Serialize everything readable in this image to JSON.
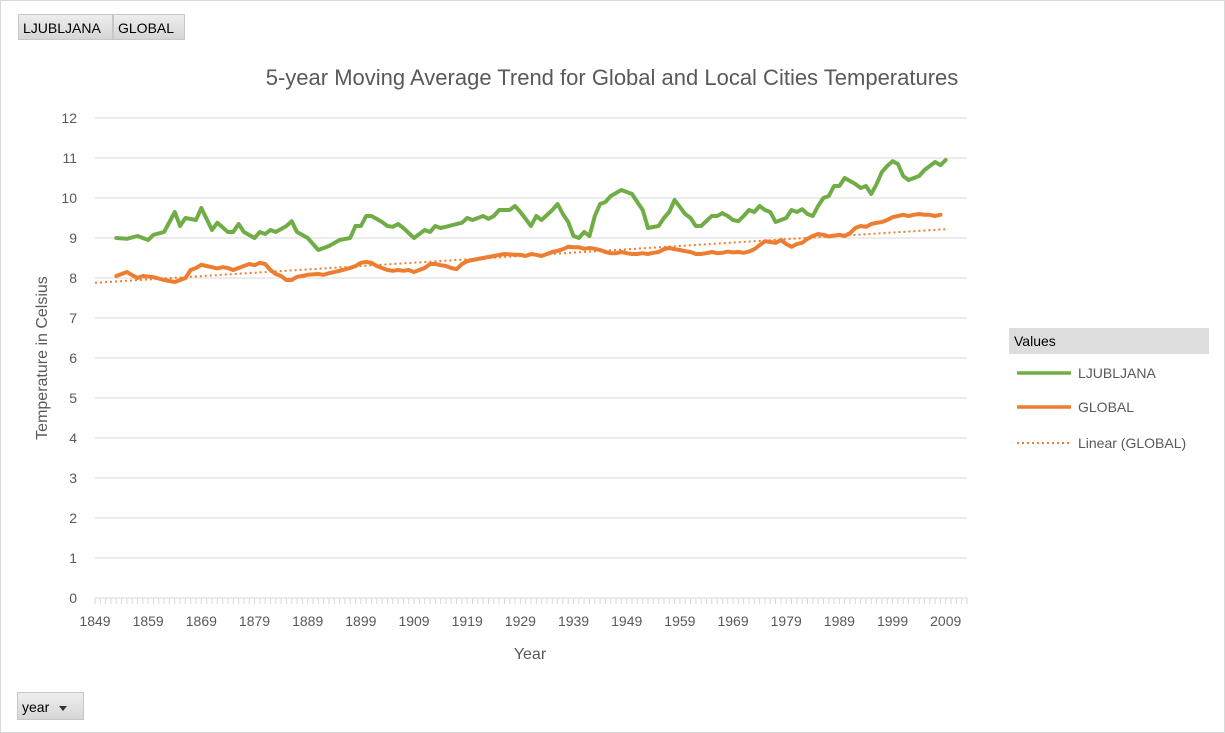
{
  "filters": {
    "series_buttons": [
      "LJUBLJANA",
      "GLOBAL"
    ],
    "axis_field_button": "year"
  },
  "legend": {
    "header": "Values",
    "entries": [
      "LJUBLJANA",
      "GLOBAL",
      "Linear (GLOBAL)"
    ]
  },
  "colors": {
    "ljubljana": "#70ad47",
    "global": "#ed7d31",
    "trend": "#ed7d31",
    "grid": "#d9d9d9"
  },
  "chart_data": {
    "type": "line",
    "title": "5-year Moving Average Trend for Global and Local Cities Temperatures",
    "xlabel": "Year",
    "ylabel": "Temperature in Celsius",
    "x_tick_labels": [
      "1849",
      "1859",
      "1869",
      "1879",
      "1889",
      "1899",
      "1909",
      "1919",
      "1929",
      "1939",
      "1949",
      "1959",
      "1969",
      "1979",
      "1989",
      "1999",
      "2009"
    ],
    "y_tick_labels": [
      "0",
      "1",
      "2",
      "3",
      "4",
      "5",
      "6",
      "7",
      "8",
      "9",
      "10",
      "11",
      "12"
    ],
    "xlim": [
      1849,
      2013
    ],
    "ylim": [
      0,
      12
    ],
    "grid": "horizontal",
    "legend_position": "right",
    "series": [
      {
        "name": "LJUBLJANA",
        "points": [
          [
            1853,
            9.0
          ],
          [
            1855,
            8.98
          ],
          [
            1857,
            9.05
          ],
          [
            1859,
            8.95
          ],
          [
            1860,
            9.08
          ],
          [
            1862,
            9.15
          ],
          [
            1864,
            9.65
          ],
          [
            1865,
            9.3
          ],
          [
            1866,
            9.5
          ],
          [
            1868,
            9.45
          ],
          [
            1869,
            9.75
          ],
          [
            1871,
            9.2
          ],
          [
            1872,
            9.38
          ],
          [
            1874,
            9.15
          ],
          [
            1875,
            9.15
          ],
          [
            1876,
            9.35
          ],
          [
            1877,
            9.15
          ],
          [
            1879,
            9.0
          ],
          [
            1880,
            9.15
          ],
          [
            1881,
            9.1
          ],
          [
            1882,
            9.2
          ],
          [
            1883,
            9.15
          ],
          [
            1885,
            9.3
          ],
          [
            1886,
            9.42
          ],
          [
            1887,
            9.15
          ],
          [
            1889,
            9.0
          ],
          [
            1891,
            8.7
          ],
          [
            1893,
            8.8
          ],
          [
            1895,
            8.95
          ],
          [
            1897,
            9.0
          ],
          [
            1898,
            9.3
          ],
          [
            1899,
            9.3
          ],
          [
            1900,
            9.55
          ],
          [
            1901,
            9.55
          ],
          [
            1903,
            9.4
          ],
          [
            1904,
            9.3
          ],
          [
            1905,
            9.28
          ],
          [
            1906,
            9.35
          ],
          [
            1907,
            9.25
          ],
          [
            1909,
            9.0
          ],
          [
            1911,
            9.2
          ],
          [
            1912,
            9.15
          ],
          [
            1913,
            9.3
          ],
          [
            1914,
            9.25
          ],
          [
            1915,
            9.28
          ],
          [
            1917,
            9.35
          ],
          [
            1918,
            9.38
          ],
          [
            1919,
            9.5
          ],
          [
            1920,
            9.45
          ],
          [
            1922,
            9.55
          ],
          [
            1923,
            9.48
          ],
          [
            1924,
            9.55
          ],
          [
            1925,
            9.7
          ],
          [
            1927,
            9.7
          ],
          [
            1928,
            9.8
          ],
          [
            1929,
            9.65
          ],
          [
            1931,
            9.3
          ],
          [
            1932,
            9.55
          ],
          [
            1933,
            9.45
          ],
          [
            1935,
            9.7
          ],
          [
            1936,
            9.85
          ],
          [
            1937,
            9.6
          ],
          [
            1938,
            9.4
          ],
          [
            1939,
            9.05
          ],
          [
            1940,
            9.0
          ],
          [
            1941,
            9.15
          ],
          [
            1942,
            9.05
          ],
          [
            1943,
            9.55
          ],
          [
            1944,
            9.85
          ],
          [
            1945,
            9.9
          ],
          [
            1946,
            10.05
          ],
          [
            1948,
            10.2
          ],
          [
            1950,
            10.1
          ],
          [
            1951,
            9.9
          ],
          [
            1952,
            9.7
          ],
          [
            1953,
            9.25
          ],
          [
            1955,
            9.3
          ],
          [
            1956,
            9.5
          ],
          [
            1957,
            9.65
          ],
          [
            1958,
            9.95
          ],
          [
            1960,
            9.6
          ],
          [
            1961,
            9.5
          ],
          [
            1962,
            9.3
          ],
          [
            1963,
            9.3
          ],
          [
            1965,
            9.55
          ],
          [
            1966,
            9.55
          ],
          [
            1967,
            9.62
          ],
          [
            1968,
            9.55
          ],
          [
            1969,
            9.45
          ],
          [
            1970,
            9.42
          ],
          [
            1971,
            9.55
          ],
          [
            1972,
            9.7
          ],
          [
            1973,
            9.65
          ],
          [
            1974,
            9.8
          ],
          [
            1975,
            9.7
          ],
          [
            1976,
            9.65
          ],
          [
            1977,
            9.4
          ],
          [
            1978,
            9.45
          ],
          [
            1979,
            9.5
          ],
          [
            1980,
            9.7
          ],
          [
            1981,
            9.65
          ],
          [
            1982,
            9.72
          ],
          [
            1983,
            9.6
          ],
          [
            1984,
            9.55
          ],
          [
            1985,
            9.8
          ],
          [
            1986,
            10.0
          ],
          [
            1987,
            10.05
          ],
          [
            1988,
            10.3
          ],
          [
            1989,
            10.3
          ],
          [
            1990,
            10.5
          ],
          [
            1992,
            10.35
          ],
          [
            1993,
            10.25
          ],
          [
            1994,
            10.3
          ],
          [
            1995,
            10.1
          ],
          [
            1996,
            10.35
          ],
          [
            1997,
            10.65
          ],
          [
            1998,
            10.8
          ],
          [
            1999,
            10.92
          ],
          [
            2000,
            10.85
          ],
          [
            2001,
            10.55
          ],
          [
            2002,
            10.45
          ],
          [
            2003,
            10.5
          ],
          [
            2004,
            10.55
          ],
          [
            2005,
            10.7
          ],
          [
            2006,
            10.8
          ],
          [
            2007,
            10.9
          ],
          [
            2008,
            10.82
          ],
          [
            2009,
            10.95
          ]
        ]
      },
      {
        "name": "GLOBAL",
        "points": [
          [
            1853,
            8.05
          ],
          [
            1855,
            8.15
          ],
          [
            1856,
            8.07
          ],
          [
            1857,
            8.0
          ],
          [
            1858,
            8.05
          ],
          [
            1860,
            8.02
          ],
          [
            1862,
            7.95
          ],
          [
            1864,
            7.9
          ],
          [
            1865,
            7.95
          ],
          [
            1866,
            8.0
          ],
          [
            1867,
            8.2
          ],
          [
            1868,
            8.25
          ],
          [
            1869,
            8.33
          ],
          [
            1870,
            8.3
          ],
          [
            1871,
            8.27
          ],
          [
            1872,
            8.24
          ],
          [
            1873,
            8.27
          ],
          [
            1874,
            8.25
          ],
          [
            1875,
            8.2
          ],
          [
            1876,
            8.25
          ],
          [
            1877,
            8.3
          ],
          [
            1878,
            8.35
          ],
          [
            1879,
            8.32
          ],
          [
            1880,
            8.38
          ],
          [
            1881,
            8.35
          ],
          [
            1882,
            8.2
          ],
          [
            1883,
            8.1
          ],
          [
            1884,
            8.05
          ],
          [
            1885,
            7.95
          ],
          [
            1886,
            7.95
          ],
          [
            1887,
            8.03
          ],
          [
            1888,
            8.05
          ],
          [
            1889,
            8.08
          ],
          [
            1891,
            8.1
          ],
          [
            1892,
            8.08
          ],
          [
            1893,
            8.12
          ],
          [
            1895,
            8.18
          ],
          [
            1897,
            8.25
          ],
          [
            1898,
            8.3
          ],
          [
            1899,
            8.38
          ],
          [
            1900,
            8.4
          ],
          [
            1901,
            8.38
          ],
          [
            1902,
            8.3
          ],
          [
            1903,
            8.25
          ],
          [
            1904,
            8.2
          ],
          [
            1905,
            8.18
          ],
          [
            1906,
            8.2
          ],
          [
            1907,
            8.18
          ],
          [
            1908,
            8.2
          ],
          [
            1909,
            8.15
          ],
          [
            1910,
            8.2
          ],
          [
            1911,
            8.25
          ],
          [
            1912,
            8.35
          ],
          [
            1913,
            8.35
          ],
          [
            1914,
            8.32
          ],
          [
            1915,
            8.3
          ],
          [
            1916,
            8.25
          ],
          [
            1917,
            8.22
          ],
          [
            1918,
            8.35
          ],
          [
            1919,
            8.42
          ],
          [
            1920,
            8.45
          ],
          [
            1922,
            8.5
          ],
          [
            1924,
            8.55
          ],
          [
            1926,
            8.6
          ],
          [
            1928,
            8.58
          ],
          [
            1929,
            8.58
          ],
          [
            1930,
            8.55
          ],
          [
            1931,
            8.6
          ],
          [
            1932,
            8.58
          ],
          [
            1933,
            8.55
          ],
          [
            1934,
            8.6
          ],
          [
            1935,
            8.65
          ],
          [
            1936,
            8.68
          ],
          [
            1937,
            8.72
          ],
          [
            1938,
            8.78
          ],
          [
            1939,
            8.77
          ],
          [
            1940,
            8.77
          ],
          [
            1941,
            8.73
          ],
          [
            1942,
            8.75
          ],
          [
            1943,
            8.73
          ],
          [
            1944,
            8.7
          ],
          [
            1945,
            8.65
          ],
          [
            1946,
            8.62
          ],
          [
            1947,
            8.62
          ],
          [
            1948,
            8.65
          ],
          [
            1949,
            8.62
          ],
          [
            1950,
            8.6
          ],
          [
            1951,
            8.6
          ],
          [
            1952,
            8.62
          ],
          [
            1953,
            8.6
          ],
          [
            1954,
            8.63
          ],
          [
            1955,
            8.65
          ],
          [
            1956,
            8.72
          ],
          [
            1957,
            8.75
          ],
          [
            1958,
            8.72
          ],
          [
            1959,
            8.7
          ],
          [
            1960,
            8.67
          ],
          [
            1961,
            8.65
          ],
          [
            1962,
            8.6
          ],
          [
            1963,
            8.6
          ],
          [
            1964,
            8.62
          ],
          [
            1965,
            8.65
          ],
          [
            1966,
            8.62
          ],
          [
            1967,
            8.63
          ],
          [
            1968,
            8.66
          ],
          [
            1969,
            8.64
          ],
          [
            1970,
            8.65
          ],
          [
            1971,
            8.63
          ],
          [
            1972,
            8.66
          ],
          [
            1973,
            8.72
          ],
          [
            1974,
            8.82
          ],
          [
            1975,
            8.92
          ],
          [
            1976,
            8.9
          ],
          [
            1977,
            8.88
          ],
          [
            1978,
            8.95
          ],
          [
            1979,
            8.85
          ],
          [
            1980,
            8.78
          ],
          [
            1981,
            8.85
          ],
          [
            1982,
            8.88
          ],
          [
            1983,
            8.98
          ],
          [
            1984,
            9.05
          ],
          [
            1985,
            9.1
          ],
          [
            1986,
            9.08
          ],
          [
            1987,
            9.04
          ],
          [
            1988,
            9.06
          ],
          [
            1989,
            9.08
          ],
          [
            1990,
            9.05
          ],
          [
            1991,
            9.12
          ],
          [
            1992,
            9.25
          ],
          [
            1993,
            9.3
          ],
          [
            1994,
            9.28
          ],
          [
            1995,
            9.35
          ],
          [
            1996,
            9.38
          ],
          [
            1997,
            9.4
          ],
          [
            1998,
            9.45
          ],
          [
            1999,
            9.52
          ],
          [
            2000,
            9.55
          ],
          [
            2001,
            9.58
          ],
          [
            2002,
            9.55
          ],
          [
            2003,
            9.58
          ],
          [
            2004,
            9.6
          ],
          [
            2005,
            9.58
          ],
          [
            2006,
            9.58
          ],
          [
            2007,
            9.55
          ],
          [
            2008,
            9.58
          ]
        ]
      },
      {
        "name": "Linear (GLOBAL)",
        "style": "dotted",
        "points": [
          [
            1849,
            7.88
          ],
          [
            2009,
            9.22
          ]
        ]
      }
    ]
  }
}
